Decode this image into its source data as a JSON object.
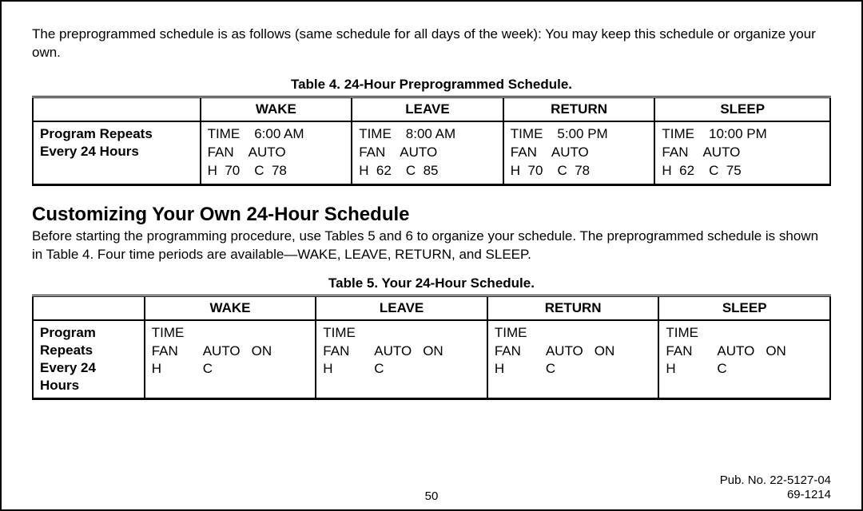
{
  "intro": "The preprogrammed schedule is as follows (same schedule for all days of the week): You may keep this schedule or organize your own.",
  "table4": {
    "caption": "Table 4. 24-Hour Preprogrammed Schedule.",
    "row_header": "Program Repeats\nEvery 24 Hours",
    "labels": {
      "time": "TIME",
      "fan": "FAN",
      "h": "H",
      "c": "C"
    },
    "periods": [
      {
        "name": "WAKE",
        "time": "6:00 AM",
        "fan": "AUTO",
        "h": "70",
        "c": "78"
      },
      {
        "name": "LEAVE",
        "time": "8:00 AM",
        "fan": "AUTO",
        "h": "62",
        "c": "85"
      },
      {
        "name": "RETURN",
        "time": "5:00 PM",
        "fan": "AUTO",
        "h": "70",
        "c": "78"
      },
      {
        "name": "SLEEP",
        "time": "10:00 PM",
        "fan": "AUTO",
        "h": "62",
        "c": "75"
      }
    ]
  },
  "section_heading": "Customizing Your Own 24-Hour Schedule",
  "section_body": "Before starting the programming procedure, use Tables 5 and 6 to organize your schedule. The preprogrammed schedule is shown in Table 4. Four time periods are available—WAKE, LEAVE, RETURN, and SLEEP.",
  "table5": {
    "caption": "Table 5. Your 24-Hour Schedule.",
    "row_header": "Program\nRepeats\nEvery 24\nHours",
    "labels": {
      "time": "TIME",
      "fan": "FAN",
      "auto": "AUTO",
      "on": "ON",
      "h": "H",
      "c": "C"
    },
    "period_names": [
      "WAKE",
      "LEAVE",
      "RETURN",
      "SLEEP"
    ]
  },
  "footer": {
    "page": "50",
    "pub": "Pub. No. 22-5127-04",
    "code": "69-1214"
  }
}
